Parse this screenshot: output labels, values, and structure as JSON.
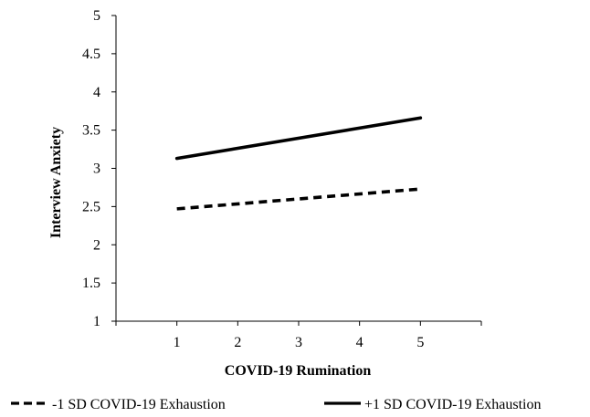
{
  "chart_data": {
    "type": "line",
    "title": "",
    "xlabel": "COVID-19 Rumination",
    "ylabel": "Interview Anxiety",
    "x": [
      1,
      5
    ],
    "x_ticks": [
      1,
      2,
      3,
      4,
      5
    ],
    "x_tick_labels": [
      "1",
      "2",
      "3",
      "4",
      "5"
    ],
    "xlim": [
      0,
      6
    ],
    "ylim": [
      1,
      5
    ],
    "y_ticks": [
      1,
      1.5,
      2,
      2.5,
      3,
      3.5,
      4,
      4.5,
      5
    ],
    "y_tick_labels": [
      "1",
      "1.5",
      "2",
      "2.5",
      "3",
      "3.5",
      "4",
      "4.5",
      "5"
    ],
    "grid": false,
    "legend_position": "bottom",
    "series": [
      {
        "name": "-1 SD COVID-19 Exhaustion",
        "values": [
          2.47,
          2.73
        ],
        "style": "dashed",
        "color": "#000000"
      },
      {
        "name": "+1 SD COVID-19 Exhaustion",
        "values": [
          3.13,
          3.66
        ],
        "style": "solid",
        "color": "#000000"
      }
    ]
  }
}
